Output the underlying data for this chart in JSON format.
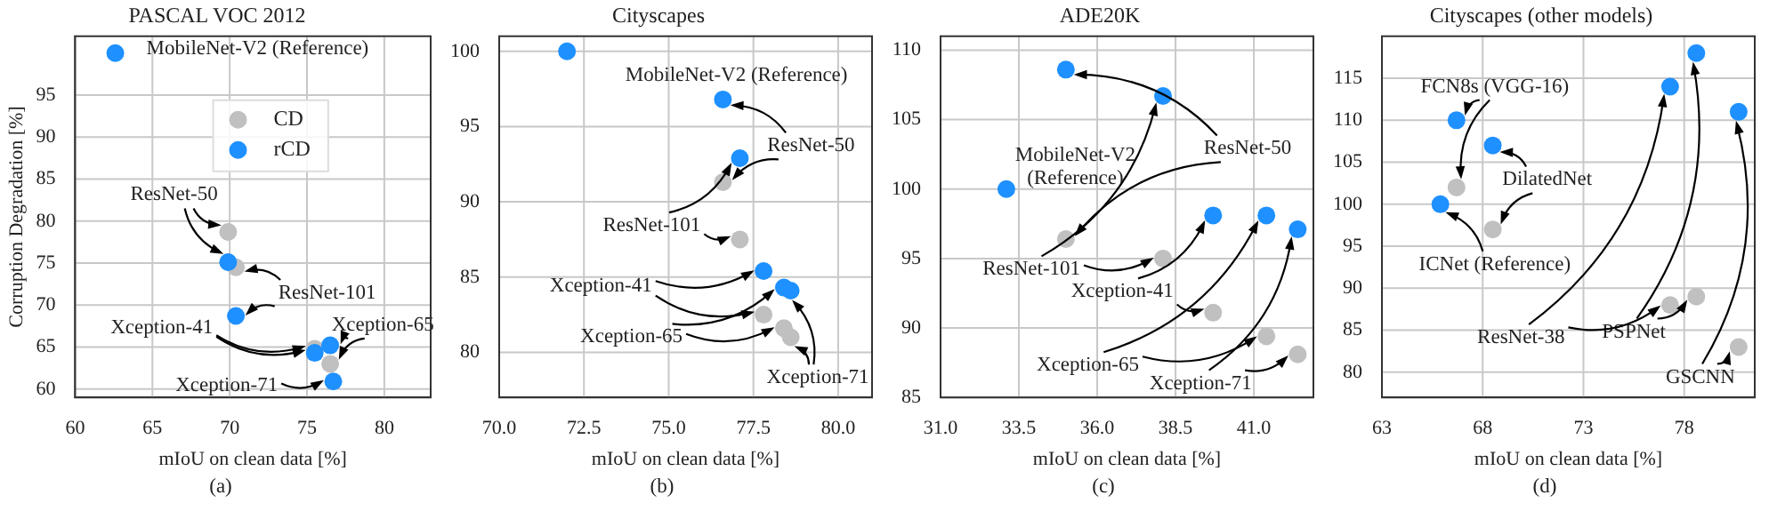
{
  "chart_data": [
    {
      "type": "scatter",
      "title": "PASCAL VOC 2012",
      "xlabel": "mIoU on clean data [%]",
      "ylabel": "Corruption Degradation [%]",
      "xlim": [
        60,
        83
      ],
      "xticks": [
        60,
        65,
        70,
        75,
        80
      ],
      "ylim": [
        59,
        102
      ],
      "yticks": [
        60,
        65,
        70,
        75,
        80,
        85,
        90,
        95
      ],
      "grid": true,
      "legend": "top",
      "marker": "circle",
      "series": [
        {
          "name": "CD",
          "color": "#c0c0c0",
          "x": [
            69.9,
            70.4,
            75.5,
            76.5
          ],
          "values": [
            78.7,
            74.5,
            64.8,
            63.0
          ]
        },
        {
          "name": "rCD",
          "color": "#1e90ff",
          "x": [
            62.6,
            69.9,
            70.4,
            75.5,
            76.5,
            76.7
          ],
          "values": [
            100,
            75.1,
            68.7,
            64.3,
            65.2,
            60.9
          ]
        }
      ],
      "annotations": [
        "MobileNet-V2 (Reference)",
        {
          "text": "ResNet-50",
          "x": 69.9,
          "y": 78.7
        },
        {
          "text": "ResNet-101",
          "x": 70.4,
          "y": 74.5
        },
        {
          "text": "Xception-41",
          "x": 75.5,
          "y": 64.3
        },
        {
          "text": "Xception-65",
          "x": 76.5,
          "y": 65.2
        },
        {
          "text": "Xception-71",
          "x": 76.7,
          "y": 60.9
        },
        "(a)"
      ]
    },
    {
      "type": "scatter",
      "title": "Cityscapes",
      "xlabel": "mIoU on clean data [%]",
      "xlim": [
        70,
        81
      ],
      "xticks": [
        {
          "value": 70,
          "label": "70.0"
        },
        {
          "value": 72.5,
          "label": "72.5"
        },
        {
          "value": 75,
          "label": "75.0"
        },
        {
          "value": 77.5,
          "label": "77.5"
        },
        {
          "value": 80,
          "label": "80.0"
        }
      ],
      "ylim": [
        77,
        101
      ],
      "yticks": [
        80,
        85,
        90,
        95,
        100
      ],
      "grid": true,
      "marker": "circle",
      "series": [
        {
          "color": "#c0c0c0",
          "x": [
            76.6,
            77.1,
            77.8,
            78.4,
            78.6
          ],
          "values": [
            91.3,
            87.5,
            82.5,
            81.6,
            81.0
          ]
        },
        {
          "color": "#1e90ff",
          "x": [
            72.0,
            76.6,
            77.1,
            77.8,
            78.4,
            78.6
          ],
          "values": [
            100,
            96.8,
            92.9,
            85.4,
            84.3,
            84.1
          ]
        }
      ],
      "annotations": [
        "MobileNet-V2 (Reference)",
        {
          "text": "ResNet-50",
          "x": 76.6,
          "y": 96.8
        },
        {
          "text": "ResNet-101",
          "x": 77.1,
          "y": 92.9
        },
        {
          "text": "Xception-41",
          "x": 77.8,
          "y": 85.4
        },
        {
          "text": "Xception-65",
          "x": 78.4,
          "y": 84.3
        },
        {
          "text": "Xception-71",
          "x": 78.6,
          "y": 84.1
        },
        "(b)"
      ]
    },
    {
      "type": "scatter",
      "title": "ADE20K",
      "xlabel": "mIoU on clean data [%]",
      "xlim": [
        31,
        42.9
      ],
      "xticks": [
        {
          "value": 31,
          "label": "31.0"
        },
        {
          "value": 33.5,
          "label": "33.5"
        },
        {
          "value": 36,
          "label": "36.0"
        },
        {
          "value": 38.5,
          "label": "38.5"
        },
        {
          "value": 41,
          "label": "41.0"
        }
      ],
      "ylim": [
        85,
        111
      ],
      "yticks": [
        85,
        90,
        95,
        100,
        105,
        110
      ],
      "grid": true,
      "marker": "circle",
      "series": [
        {
          "color": "#c0c0c0",
          "x": [
            35.0,
            38.1,
            39.7,
            41.4,
            42.4
          ],
          "values": [
            96.4,
            95.0,
            91.1,
            89.4,
            88.1
          ]
        },
        {
          "color": "#1e90ff",
          "x": [
            33.1,
            35.0,
            38.1,
            39.7,
            41.4,
            42.4
          ],
          "values": [
            100,
            108.6,
            106.7,
            98.1,
            98.1,
            97.1
          ]
        }
      ],
      "annotations": [
        "MobileNet-V2\n(Reference)",
        {
          "text": "ResNet-50",
          "x": 35.0,
          "y": 108.6
        },
        {
          "text": "ResNet-101",
          "x": 38.1,
          "y": 106.7
        },
        {
          "text": "Xception-41",
          "x": 39.7,
          "y": 98.1
        },
        {
          "text": "Xception-65",
          "x": 41.4,
          "y": 98.1
        },
        {
          "text": "Xception-71",
          "x": 42.4,
          "y": 97.1
        },
        "(c)"
      ]
    },
    {
      "type": "scatter",
      "title": "Cityscapes (other models)",
      "xlabel": "mIoU on clean data [%]",
      "xlim": [
        63,
        81.5
      ],
      "xticks": [
        63,
        68,
        73,
        78
      ],
      "ylim": [
        77,
        120
      ],
      "yticks": [
        80,
        85,
        90,
        95,
        100,
        105,
        110,
        115
      ],
      "grid": true,
      "marker": "circle",
      "series": [
        {
          "color": "#c0c0c0",
          "x": [
            66.7,
            68.5,
            77.3,
            78.6,
            80.7
          ],
          "values": [
            102,
            97,
            88,
            89,
            83
          ]
        },
        {
          "color": "#1e90ff",
          "x": [
            65.9,
            66.7,
            68.5,
            77.3,
            78.6,
            80.7
          ],
          "values": [
            100,
            110,
            107,
            114,
            118,
            111
          ]
        }
      ],
      "annotations": [
        {
          "text": "ICNet (Reference)",
          "x": 65.9,
          "y": 100
        },
        {
          "text": "FCN8s (VGG-16)",
          "x": 66.7,
          "y": 110
        },
        {
          "text": "DilatedNet",
          "x": 68.5,
          "y": 107
        },
        {
          "text": "ResNet-38",
          "x": 77.3,
          "y": 114
        },
        {
          "text": "PSPNet",
          "x": 78.6,
          "y": 118
        },
        {
          "text": "GSCNN",
          "x": 80.7,
          "y": 111
        },
        "(d)"
      ]
    }
  ]
}
